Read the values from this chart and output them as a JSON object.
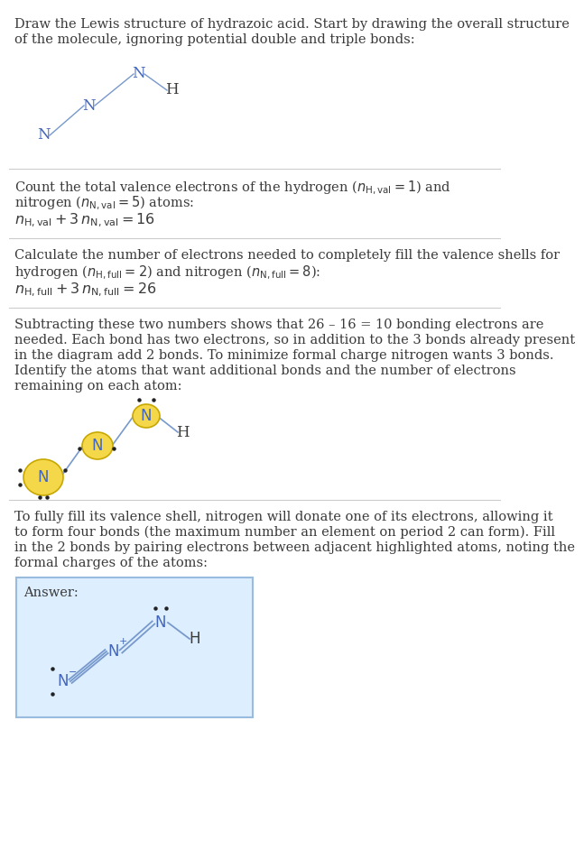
{
  "bg_color": "#ffffff",
  "text_color": "#3a3a3a",
  "bond_color": "#7799cc",
  "atom_color_N": "#4466bb",
  "atom_color_H": "#3a3a3a",
  "highlight_fill": "#f5d84a",
  "highlight_edge": "#c8a800",
  "answer_bg": "#ddeeff",
  "answer_border": "#99bbdd",
  "sep_color": "#cccccc",
  "dot_color": "#222222",
  "sec1_title_line1": "Draw the Lewis structure of hydrazoic acid. Start by drawing the overall structure",
  "sec1_title_line2": "of the molecule, ignoring potential double and triple bonds:",
  "sec2_line1": "Count the total valence electrons of the hydrogen (",
  "sec2_math1": "n_{\\rm H,val} = 1",
  "sec2_rest1": ") and",
  "sec2_line2_a": "nitrogen (",
  "sec2_math2": "n_{\\rm N,val} = 5",
  "sec2_rest2": ") atoms:",
  "sec2_eq": "n_{\\rm H,val} + 3\\,n_{\\rm N,val} = 16",
  "sec3_line1": "Calculate the number of electrons needed to completely fill the valence shells for",
  "sec3_line2_a": "hydrogen (",
  "sec3_math1": "n_{\\rm H,full} = 2",
  "sec3_mid": ") and nitrogen (",
  "sec3_math2": "n_{\\rm N,full} = 8",
  "sec3_rest": "):",
  "sec3_eq": "n_{\\rm H,full} + 3\\,n_{\\rm N,full} = 26",
  "sec4_line1": "Subtracting these two numbers shows that 26 – 16 = 10 bonding electrons are",
  "sec4_line2": "needed. Each bond has two electrons, so in addition to the 3 bonds already present",
  "sec4_line3": "in the diagram add 2 bonds. To minimize formal charge nitrogen wants 3 bonds.",
  "sec4_line4": "Identify the atoms that want additional bonds and the number of electrons",
  "sec4_line5": "remaining on each atom:",
  "sec5_line1": "To fully fill its valence shell, nitrogen will donate one of its electrons, allowing it",
  "sec5_line2": "to form four bonds (the maximum number an element on period 2 can form). Fill",
  "sec5_line3": "in the 2 bonds by pairing electrons between adjacent highlighted atoms, noting the",
  "sec5_line4": "formal charges of the atoms:",
  "answer_label": "Answer:"
}
